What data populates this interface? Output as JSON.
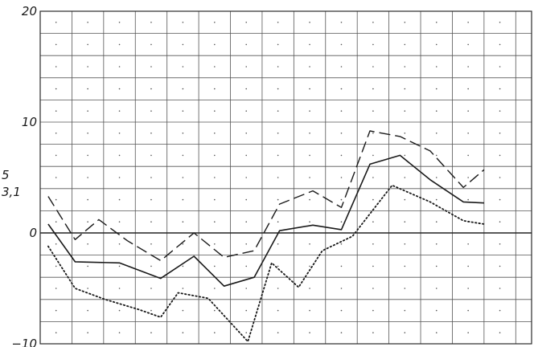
{
  "chart_data": {
    "type": "line",
    "title": "",
    "xlabel": "",
    "ylabel": "",
    "x": [
      0,
      1,
      2,
      3,
      4,
      5,
      6,
      7,
      8,
      9,
      10,
      11,
      12,
      13,
      14,
      15,
      16,
      17,
      18,
      19,
      20,
      21,
      22,
      23,
      24,
      25,
      26,
      27,
      28,
      29,
      30,
      31
    ],
    "xlim": [
      0,
      31
    ],
    "ylim": [
      -10,
      20
    ],
    "y_ticks": [
      -10,
      0,
      10,
      20
    ],
    "y_tick_labels": [
      "−10",
      "0",
      "10",
      "20"
    ],
    "grid": true,
    "grid_minor_dots": true,
    "annotation": {
      "lines": [
        "3,1",
        "5"
      ],
      "y_values": [
        3.1,
        5
      ]
    },
    "series": [
      {
        "style": "dashed",
        "points": [
          [
            0.5,
            3.3
          ],
          [
            2.2,
            -0.6
          ],
          [
            3.7,
            1.2
          ],
          [
            5.5,
            -0.7
          ],
          [
            7.6,
            -2.5
          ],
          [
            9.7,
            0
          ],
          [
            11.6,
            -2.2
          ],
          [
            13.5,
            -1.6
          ],
          [
            15.1,
            2.6
          ],
          [
            17.2,
            3.8
          ],
          [
            19.0,
            2.3
          ],
          [
            20.8,
            9.2
          ],
          [
            22.7,
            8.7
          ],
          [
            24.6,
            7.4
          ],
          [
            26.7,
            4.1
          ],
          [
            28.0,
            5.7
          ]
        ]
      },
      {
        "style": "solid",
        "points": [
          [
            0.5,
            0.8
          ],
          [
            2.2,
            -2.6
          ],
          [
            5.0,
            -2.7
          ],
          [
            7.6,
            -4.1
          ],
          [
            9.7,
            -2.1
          ],
          [
            11.6,
            -4.8
          ],
          [
            13.5,
            -4.0
          ],
          [
            15.1,
            0.2
          ],
          [
            17.2,
            0.7
          ],
          [
            19.0,
            0.3
          ],
          [
            20.8,
            6.2
          ],
          [
            22.7,
            7.0
          ],
          [
            24.6,
            4.8
          ],
          [
            26.7,
            2.8
          ],
          [
            28.0,
            2.7
          ]
        ]
      },
      {
        "style": "dotted",
        "points": [
          [
            0.5,
            -1.2
          ],
          [
            2.2,
            -5.0
          ],
          [
            4.1,
            -6.0
          ],
          [
            6.2,
            -6.9
          ],
          [
            7.6,
            -7.6
          ],
          [
            8.7,
            -5.4
          ],
          [
            10.6,
            -5.9
          ],
          [
            12.2,
            -8.4
          ],
          [
            13.1,
            -9.8
          ],
          [
            14.6,
            -2.7
          ],
          [
            16.3,
            -4.9
          ],
          [
            17.8,
            -1.6
          ],
          [
            19.7,
            -0.3
          ],
          [
            22.2,
            4.3
          ],
          [
            24.6,
            2.8
          ],
          [
            26.7,
            1.1
          ],
          [
            28.0,
            0.8
          ]
        ]
      }
    ]
  }
}
